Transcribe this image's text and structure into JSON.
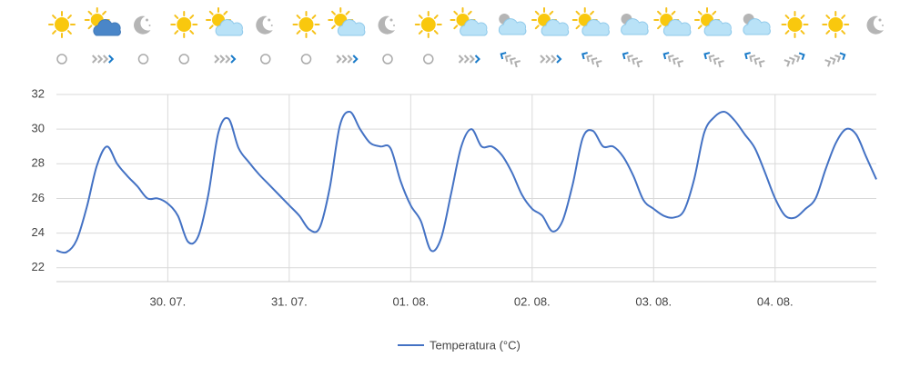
{
  "chart_data": {
    "type": "line",
    "categories": [
      null,
      null,
      null,
      null,
      null,
      null,
      null,
      null,
      null,
      null,
      null,
      "30. 07.",
      null,
      null,
      null,
      null,
      null,
      null,
      null,
      null,
      null,
      null,
      null,
      "31. 07.",
      null,
      null,
      null,
      null,
      null,
      null,
      null,
      null,
      null,
      null,
      null,
      "01. 08.",
      null,
      null,
      null,
      null,
      null,
      null,
      null,
      null,
      null,
      null,
      null,
      "02. 08.",
      null,
      null,
      null,
      null,
      null,
      null,
      null,
      null,
      null,
      null,
      null,
      "03. 08.",
      null,
      null,
      null,
      null,
      null,
      null,
      null,
      null,
      null,
      null,
      null,
      "04. 08.",
      null,
      null,
      null,
      null,
      null,
      null,
      null,
      null,
      null,
      null
    ],
    "series": [
      {
        "name": "Temperatura (°C)",
        "color": "#4472c4",
        "values": [
          23.0,
          22.9,
          23.6,
          25.5,
          27.9,
          29.0,
          28.0,
          27.3,
          26.7,
          26.0,
          26.0,
          25.7,
          25.0,
          23.5,
          23.8,
          26.2,
          29.8,
          30.6,
          28.9,
          28.1,
          27.4,
          26.8,
          26.2,
          25.6,
          25.0,
          24.2,
          24.3,
          26.6,
          30.2,
          31.0,
          30.0,
          29.2,
          29.0,
          28.9,
          27.0,
          25.6,
          24.7,
          23.0,
          23.7,
          26.3,
          29.0,
          30.0,
          29.0,
          29.0,
          28.5,
          27.5,
          26.2,
          25.4,
          25.0,
          24.1,
          24.7,
          26.8,
          29.5,
          29.9,
          29.0,
          29.0,
          28.4,
          27.3,
          25.9,
          25.4,
          25.0,
          24.9,
          25.3,
          27.1,
          29.8,
          30.7,
          31.0,
          30.5,
          29.7,
          28.9,
          27.5,
          26.0,
          25.0,
          24.9,
          25.4,
          26.0,
          27.7,
          29.2,
          30.0,
          29.7,
          28.4,
          27.1
        ]
      }
    ],
    "ylim": [
      21.2,
      32
    ],
    "yticks": [
      22,
      24,
      26,
      28,
      30,
      32
    ],
    "grid": true,
    "legend": "bottom"
  }
}
